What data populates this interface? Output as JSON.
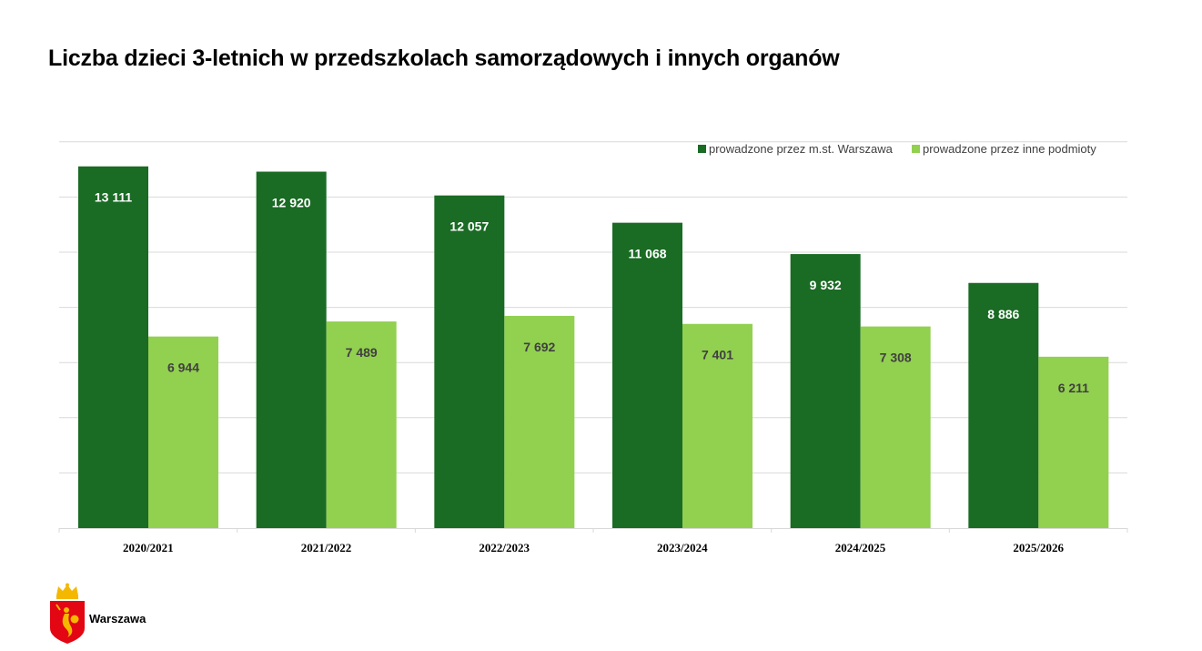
{
  "title": "Liczba dzieci 3-letnich w przedszkolach samorządowych i innych organów",
  "logo": {
    "text": "Warszawa",
    "icon": "warszawa-coat-of-arms-icon"
  },
  "colors": {
    "series1": "#1a6b24",
    "series2": "#92d050",
    "grid": "#d9d9d9"
  },
  "chart_data": {
    "type": "bar",
    "title": "Liczba dzieci 3-letnich w przedszkolach samorządowych i innych organów",
    "categories": [
      "2020/2021",
      "2021/2022",
      "2022/2023",
      "2023/2024",
      "2024/2025",
      "2025/2026"
    ],
    "series": [
      {
        "name": "prowadzone przez m.st. Warszawa",
        "values": [
          13111,
          12920,
          12057,
          11068,
          9932,
          8886
        ],
        "labels": [
          "13 111",
          "12 920",
          "12 057",
          "11 068",
          "9 932",
          "8 886"
        ]
      },
      {
        "name": "prowadzone przez inne podmioty",
        "values": [
          6944,
          7489,
          7692,
          7401,
          7308,
          6211
        ],
        "labels": [
          "6 944",
          "7 489",
          "7 692",
          "7 401",
          "7 308",
          "6 211"
        ]
      }
    ],
    "ylim": [
      0,
      14000
    ],
    "grid": true,
    "legend_position": "top-right",
    "xlabel": "",
    "ylabel": ""
  }
}
